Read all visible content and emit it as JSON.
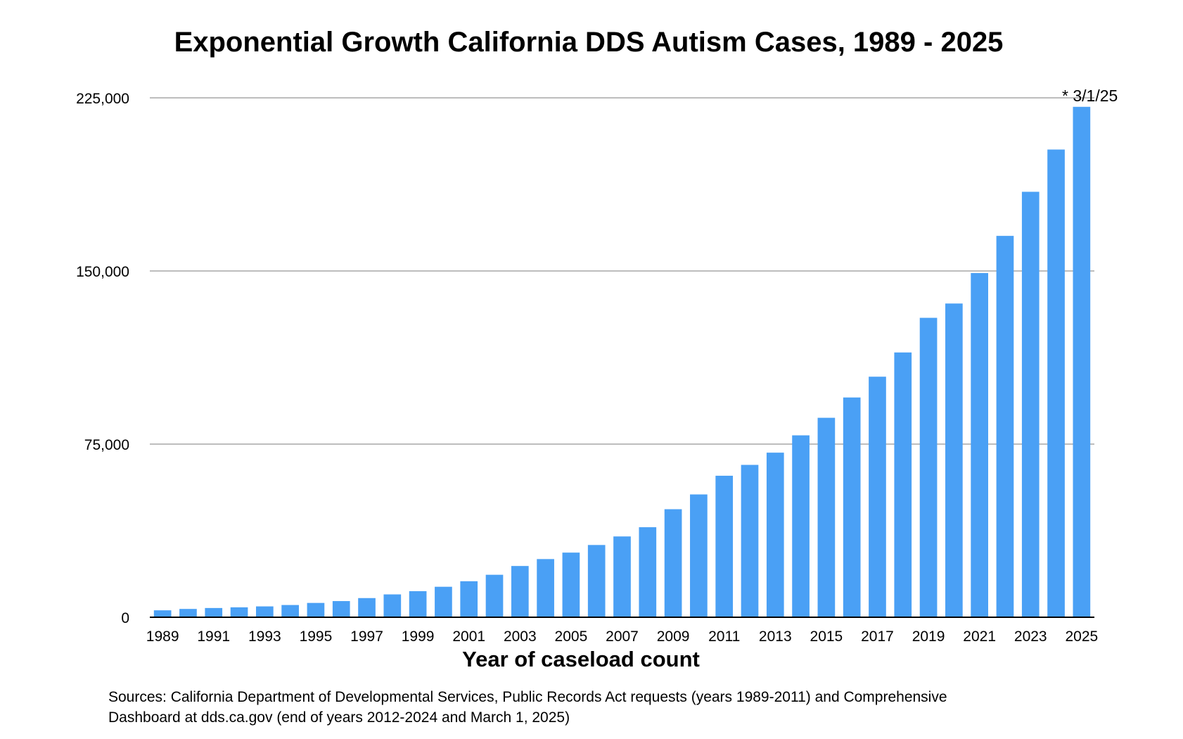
{
  "chart_data": {
    "type": "bar",
    "title": "Exponential Growth California DDS Autism Cases, 1989 - 2025",
    "xlabel": "Year of caseload count",
    "ylabel": "",
    "ylim": [
      0,
      225000
    ],
    "yticks": [
      0,
      75000,
      150000,
      225000
    ],
    "ytick_labels": [
      "0",
      "75,000",
      "150,000",
      "225,000"
    ],
    "grid": true,
    "bar_color": "#4aa0f5",
    "categories": [
      "1989",
      "1990",
      "1991",
      "1992",
      "1993",
      "1994",
      "1995",
      "1996",
      "1997",
      "1998",
      "1999",
      "2000",
      "2001",
      "2002",
      "2003",
      "2004",
      "2005",
      "2006",
      "2007",
      "2008",
      "2009",
      "2010",
      "2011",
      "2012",
      "2013",
      "2014",
      "2015",
      "2016",
      "2017",
      "2018",
      "2019",
      "2020",
      "2021",
      "2022",
      "2023",
      "2024",
      "2025"
    ],
    "xtick_labels": [
      "1989",
      "1991",
      "1993",
      "1995",
      "1997",
      "1999",
      "2001",
      "2003",
      "2005",
      "2007",
      "2009",
      "2011",
      "2013",
      "2015",
      "2017",
      "2019",
      "2021",
      "2023",
      "2025"
    ],
    "values": [
      3000,
      3600,
      4000,
      4300,
      4700,
      5300,
      6200,
      7000,
      8300,
      9900,
      11300,
      13200,
      15600,
      18400,
      22200,
      25200,
      28000,
      31300,
      35000,
      39000,
      46800,
      53200,
      61300,
      66000,
      71300,
      78800,
      86400,
      95200,
      104200,
      114700,
      129700,
      135900,
      149100,
      165200,
      184300,
      202600,
      221100
    ],
    "annotation": "* 3/1/25"
  },
  "source_note": {
    "line1": "Sources: California Department of Developmental Services, Public Records Act requests (years 1989-2011) and Comprehensive",
    "line2": "Dashboard at dds.ca.gov (end of years 2012-2024 and March 1, 2025)"
  }
}
